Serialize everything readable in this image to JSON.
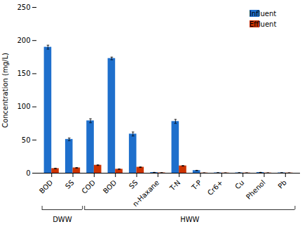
{
  "chart_data": {
    "type": "bar",
    "categories": [
      "BOD",
      "SS",
      "COD",
      "BOD",
      "SS",
      "n-Haxane",
      "T-N",
      "T-P",
      "Cr6+",
      "Cu",
      "Phenol",
      "Pb"
    ],
    "series": [
      {
        "name": "Influent",
        "color": "#1e6fcc",
        "values": [
          190,
          51,
          79,
          173,
          59,
          1,
          78,
          4,
          0.5,
          0.5,
          1,
          0.5
        ],
        "errors": [
          3,
          2,
          3,
          2,
          3,
          0.2,
          3,
          0.3,
          0.2,
          0.2,
          0.2,
          0.2
        ]
      },
      {
        "name": "Effluent",
        "color": "#cc3300",
        "values": [
          7,
          8,
          12,
          6,
          9,
          0.5,
          11,
          0.3,
          0.3,
          0.3,
          0.3,
          0.3
        ],
        "errors": [
          0.5,
          0.5,
          0.5,
          0.5,
          0.5,
          0.2,
          0.5,
          0.1,
          0.1,
          0.1,
          0.1,
          0.1
        ]
      }
    ],
    "ylabel": "Concentration (mg/L)",
    "ylim": [
      0,
      250
    ],
    "yticks": [
      0,
      50,
      100,
      150,
      200,
      250
    ],
    "grid": false,
    "legend": "upper right",
    "annotations": [
      {
        "text": "DWW",
        "from": 0,
        "to": 1
      },
      {
        "text": "HWW",
        "from": 2,
        "to": 11
      }
    ]
  }
}
